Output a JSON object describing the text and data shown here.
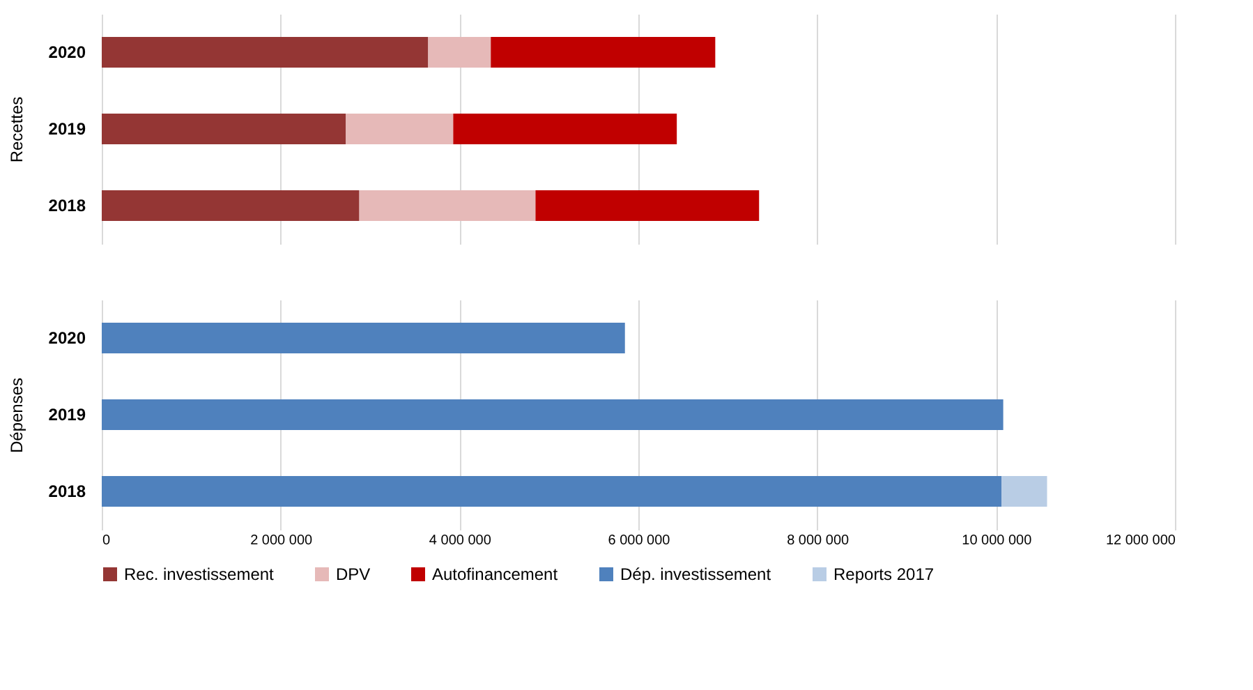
{
  "chart_data": [
    {
      "type": "bar",
      "orientation": "horizontal",
      "stacked": true,
      "ylabel": "Recettes",
      "categories": [
        "2020",
        "2019",
        "2018"
      ],
      "series": [
        {
          "name": "Rec. investissement",
          "color": "#943634",
          "values": [
            3650000,
            2730000,
            2880000
          ]
        },
        {
          "name": "DPV",
          "color": "#e6b9b8",
          "values": [
            700000,
            1200000,
            1970000
          ]
        },
        {
          "name": "Autofinancement",
          "color": "#c00000",
          "values": [
            2510000,
            2500000,
            2500000
          ]
        }
      ],
      "xlim": [
        0,
        12000000
      ],
      "xticks": [
        {
          "value": 0,
          "label": null
        },
        {
          "value": 2000000,
          "label": null
        },
        {
          "value": 4000000,
          "label": null
        },
        {
          "value": 6000000,
          "label": null
        },
        {
          "value": 8000000,
          "label": null
        },
        {
          "value": 10000000,
          "label": null
        },
        {
          "value": 12000000,
          "label": null
        }
      ],
      "grid": "x",
      "legend": "bottom",
      "tick_labels": "y"
    },
    {
      "type": "bar",
      "orientation": "horizontal",
      "stacked": true,
      "ylabel": "Dépenses",
      "categories": [
        "2020",
        "2019",
        "2018"
      ],
      "series": [
        {
          "name": "Dép. investissement",
          "color": "#4f81bd",
          "values": [
            5850000,
            10080000,
            10060000
          ]
        },
        {
          "name": "Reports 2017",
          "color": "#b9cde5",
          "values": [
            null,
            null,
            510000
          ]
        }
      ],
      "xlim": [
        0,
        12000000
      ],
      "xticks": [
        0,
        {
          "value": 2000000,
          "label": "2 000 000"
        },
        {
          "value": 4000000,
          "label": "4 000 000"
        },
        {
          "value": 6000000,
          "label": "6 000 000"
        },
        {
          "value": 8000000,
          "label": "8 000 000"
        },
        {
          "value": 10000000,
          "label": "10 000 000"
        },
        {
          "value": 12000000,
          "label": "12 000 000"
        }
      ],
      "grid": "x",
      "legend": "bottom"
    }
  ]
}
